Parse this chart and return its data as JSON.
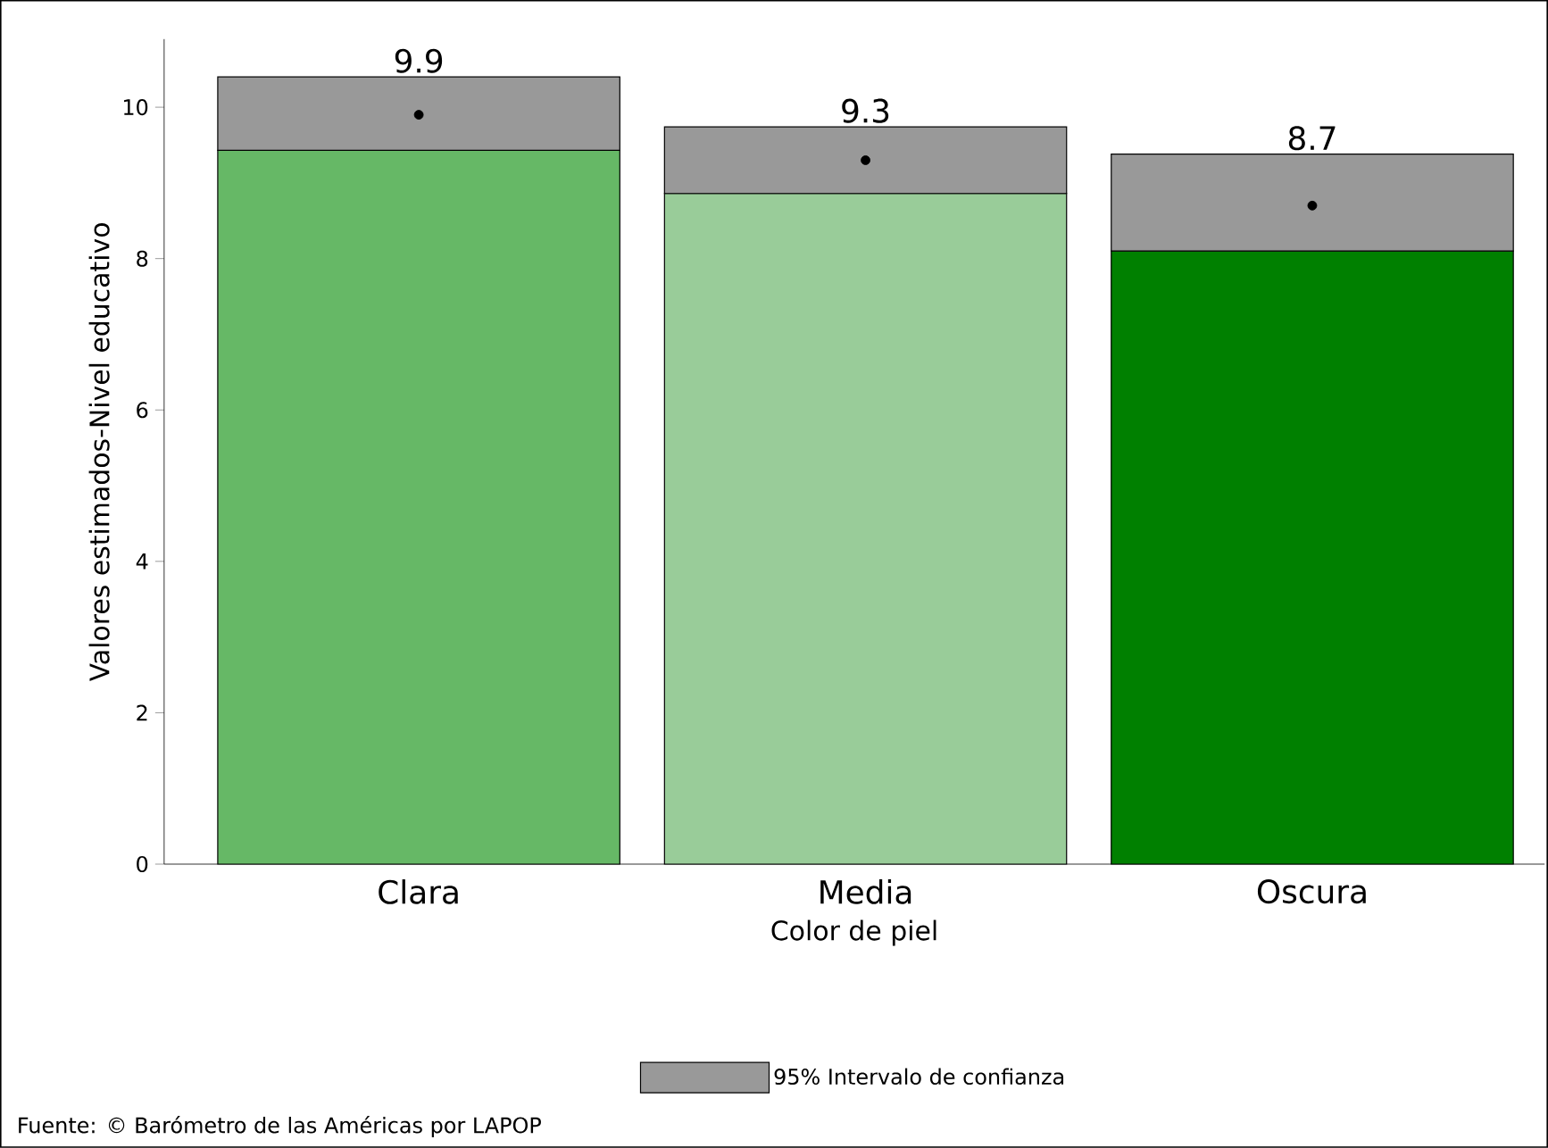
{
  "chart_data": {
    "type": "bar",
    "stacked": true,
    "categories": [
      "Clara",
      "Media",
      "Oscura"
    ],
    "series": [
      {
        "colors": [
          "#66b866",
          "#99cc99",
          "#008000"
        ],
        "values": [
          9.43,
          8.86,
          8.1
        ]
      },
      {
        "name": "95% Intervalo de confianza",
        "color": "#999999",
        "values": [
          0.97,
          0.88,
          1.28
        ]
      },
      {
        "type": "scatter",
        "color": "#000000",
        "values": [
          9.9,
          9.3,
          8.7
        ],
        "value_labels": [
          "9.9",
          "9.3",
          "8.7"
        ]
      }
    ],
    "marker": "circle",
    "legend": "bottom",
    "xlabel": "Color de piel",
    "ylabel": "Valores estimados-Nivel educativo",
    "ylim": [
      0,
      10.9
    ],
    "yticks": [
      0,
      2,
      4,
      6,
      8,
      10
    ],
    "annotations": [
      "Fuente: © Barómetro de las Américas por LAPOP"
    ]
  }
}
